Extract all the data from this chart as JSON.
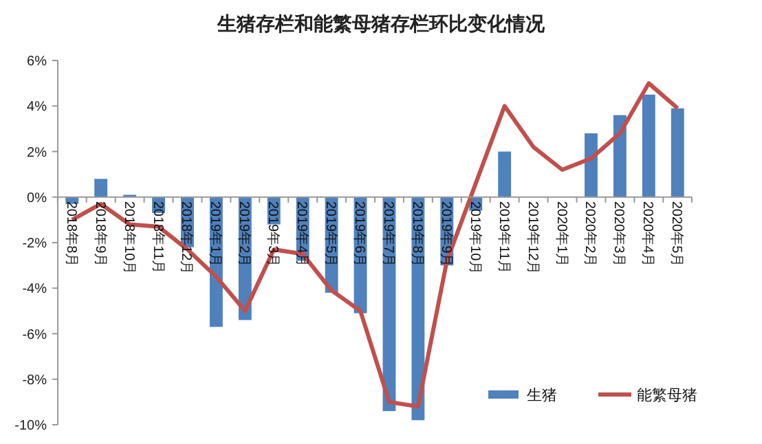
{
  "chart_data": {
    "type": "bar",
    "title": "生猪存栏和能繁母猪存栏环比变化情况",
    "categories": [
      "2018年8月",
      "2018年9月",
      "2018年10月",
      "2018年11月",
      "2018年12月",
      "2019年1月",
      "2019年2月",
      "2019年3月",
      "2019年4月",
      "2019年5月",
      "2019年6月",
      "2019年7月",
      "2019年8月",
      "2019年9月",
      "2019年10月",
      "2019年11月",
      "2019年12月",
      "2020年1月",
      "2020年2月",
      "2020年3月",
      "2020年4月",
      "2020年5月"
    ],
    "series": [
      {
        "name": "生猪",
        "color": "#4f81bd",
        "values": [
          -0.3,
          0.8,
          0.1,
          -0.7,
          -2.2,
          -5.7,
          -5.4,
          -1.2,
          -2.8,
          -4.2,
          -5.1,
          -9.4,
          -9.8,
          -3.0,
          -0.6,
          2.0,
          0,
          0,
          2.8,
          3.6,
          4.5,
          3.9
        ]
      },
      {
        "name": "能繁母猪",
        "type": "line",
        "color": "#c0504d",
        "values": [
          -1.0,
          -0.3,
          -1.2,
          -1.3,
          -2.3,
          -3.5,
          -5.0,
          -2.3,
          -2.5,
          -4.1,
          -5.0,
          -9.0,
          -9.2,
          -2.8,
          0.6,
          4.0,
          2.2,
          1.2,
          1.7,
          2.8,
          5.0,
          3.9
        ]
      }
    ],
    "ylim": [
      -10,
      6
    ],
    "yticks": [
      {
        "value": -10,
        "label": "-10%"
      },
      {
        "value": -8,
        "label": "-8%"
      },
      {
        "value": -6,
        "label": "-6%"
      },
      {
        "value": -4,
        "label": "-4%"
      },
      {
        "value": -2,
        "label": "-2%"
      },
      {
        "value": 0,
        "label": "0%"
      },
      {
        "value": 2,
        "label": "2%"
      },
      {
        "value": 4,
        "label": "4%"
      },
      {
        "value": 6,
        "label": "6%"
      }
    ],
    "grid": false,
    "legend": "bottom right"
  }
}
